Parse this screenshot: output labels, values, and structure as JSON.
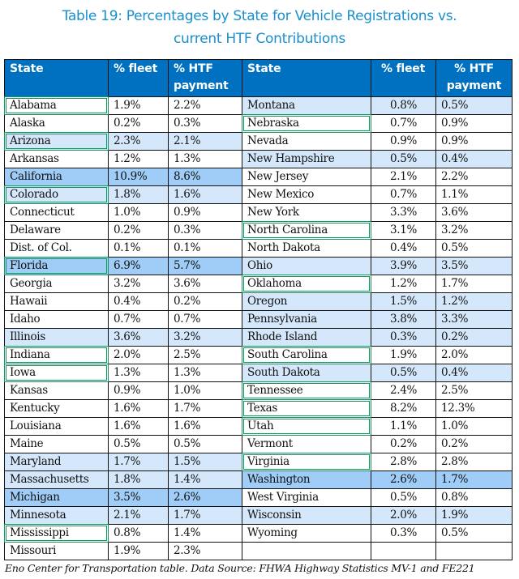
{
  "title_line1": "Table 19: Percentages by State for Vehicle Registrations vs.",
  "title_line2": "current HTF Contributions",
  "headers": {
    "left": {
      "state": "State",
      "fleet": "% fleet",
      "htf": "% HTF payment"
    },
    "right": {
      "state": "State",
      "fleet": "% fleet",
      "htf": "% HTF payment"
    }
  },
  "colors": {
    "header_bg": "#0070c0",
    "title": "#1a8fce",
    "highlight_green": "#15955e",
    "shade_light": "#d5e8fb",
    "shade_medium": "#9fcdf7"
  },
  "left_rows": [
    {
      "state": "Alabama",
      "fleet": "1.9%",
      "htf": "2.2%",
      "green": true,
      "shade": ""
    },
    {
      "state": "Alaska",
      "fleet": "0.2%",
      "htf": "0.3%",
      "green": false,
      "shade": ""
    },
    {
      "state": "Arizona",
      "fleet": "2.3%",
      "htf": "2.1%",
      "green": true,
      "shade": "light"
    },
    {
      "state": "Arkansas",
      "fleet": "1.2%",
      "htf": "1.3%",
      "green": false,
      "shade": ""
    },
    {
      "state": "California",
      "fleet": "10.9%",
      "htf": "8.6%",
      "green": false,
      "shade": "medium"
    },
    {
      "state": "Colorado",
      "fleet": "1.8%",
      "htf": "1.6%",
      "green": true,
      "shade": "light"
    },
    {
      "state": "Connecticut",
      "fleet": "1.0%",
      "htf": "0.9%",
      "green": false,
      "shade": ""
    },
    {
      "state": "Delaware",
      "fleet": "0.2%",
      "htf": "0.3%",
      "green": false,
      "shade": ""
    },
    {
      "state": "Dist. of Col.",
      "fleet": "0.1%",
      "htf": "0.1%",
      "green": false,
      "shade": ""
    },
    {
      "state": "Florida",
      "fleet": "6.9%",
      "htf": "5.7%",
      "green": true,
      "shade": "medium"
    },
    {
      "state": "Georgia",
      "fleet": "3.2%",
      "htf": "3.6%",
      "green": false,
      "shade": ""
    },
    {
      "state": "Hawaii",
      "fleet": "0.4%",
      "htf": "0.2%",
      "green": false,
      "shade": ""
    },
    {
      "state": "Idaho",
      "fleet": "0.7%",
      "htf": "0.7%",
      "green": false,
      "shade": ""
    },
    {
      "state": "Illinois",
      "fleet": "3.6%",
      "htf": "3.2%",
      "green": false,
      "shade": "light"
    },
    {
      "state": "Indiana",
      "fleet": "2.0%",
      "htf": "2.5%",
      "green": true,
      "shade": ""
    },
    {
      "state": "Iowa",
      "fleet": "1.3%",
      "htf": "1.3%",
      "green": true,
      "shade": ""
    },
    {
      "state": "Kansas",
      "fleet": "0.9%",
      "htf": "1.0%",
      "green": false,
      "shade": ""
    },
    {
      "state": "Kentucky",
      "fleet": "1.6%",
      "htf": "1.7%",
      "green": false,
      "shade": ""
    },
    {
      "state": "Louisiana",
      "fleet": "1.6%",
      "htf": "1.6%",
      "green": false,
      "shade": ""
    },
    {
      "state": "Maine",
      "fleet": "0.5%",
      "htf": "0.5%",
      "green": false,
      "shade": ""
    },
    {
      "state": "Maryland",
      "fleet": "1.7%",
      "htf": "1.5%",
      "green": false,
      "shade": "light"
    },
    {
      "state": "Massachusetts",
      "fleet": "1.8%",
      "htf": "1.4%",
      "green": false,
      "shade": "light"
    },
    {
      "state": "Michigan",
      "fleet": "3.5%",
      "htf": "2.6%",
      "green": false,
      "shade": "medium"
    },
    {
      "state": "Minnesota",
      "fleet": "2.1%",
      "htf": "1.7%",
      "green": false,
      "shade": "light"
    },
    {
      "state": "Mississippi",
      "fleet": "0.8%",
      "htf": "1.4%",
      "green": true,
      "shade": ""
    },
    {
      "state": "Missouri",
      "fleet": "1.9%",
      "htf": "2.3%",
      "green": false,
      "shade": ""
    }
  ],
  "right_rows": [
    {
      "state": "Montana",
      "fleet": "0.8%",
      "htf": "0.5%",
      "green": false,
      "shade": "light"
    },
    {
      "state": "Nebraska",
      "fleet": "0.7%",
      "htf": "0.9%",
      "green": true,
      "shade": ""
    },
    {
      "state": "Nevada",
      "fleet": "0.9%",
      "htf": "0.9%",
      "green": false,
      "shade": ""
    },
    {
      "state": "New Hampshire",
      "fleet": "0.5%",
      "htf": "0.4%",
      "green": false,
      "shade": "light"
    },
    {
      "state": "New Jersey",
      "fleet": "2.1%",
      "htf": "2.2%",
      "green": false,
      "shade": ""
    },
    {
      "state": "New Mexico",
      "fleet": "0.7%",
      "htf": "1.1%",
      "green": false,
      "shade": ""
    },
    {
      "state": "New York",
      "fleet": "3.3%",
      "htf": "3.6%",
      "green": false,
      "shade": ""
    },
    {
      "state": "North Carolina",
      "fleet": "3.1%",
      "htf": "3.2%",
      "green": true,
      "shade": ""
    },
    {
      "state": "North Dakota",
      "fleet": "0.4%",
      "htf": "0.5%",
      "green": false,
      "shade": ""
    },
    {
      "state": "Ohio",
      "fleet": "3.9%",
      "htf": "3.5%",
      "green": false,
      "shade": "light"
    },
    {
      "state": "Oklahoma",
      "fleet": "1.2%",
      "htf": "1.7%",
      "green": true,
      "shade": ""
    },
    {
      "state": "Oregon",
      "fleet": "1.5%",
      "htf": "1.2%",
      "green": false,
      "shade": "light"
    },
    {
      "state": "Pennsylvania",
      "fleet": "3.8%",
      "htf": "3.3%",
      "green": false,
      "shade": "light"
    },
    {
      "state": "Rhode Island",
      "fleet": "0.3%",
      "htf": "0.2%",
      "green": false,
      "shade": "light"
    },
    {
      "state": "South Carolina",
      "fleet": "1.9%",
      "htf": "2.0%",
      "green": true,
      "shade": ""
    },
    {
      "state": "South Dakota",
      "fleet": "0.5%",
      "htf": "0.4%",
      "green": false,
      "shade": "light"
    },
    {
      "state": "Tennessee",
      "fleet": "2.4%",
      "htf": "2.5%",
      "green": true,
      "shade": ""
    },
    {
      "state": "Texas",
      "fleet": "8.2%",
      "htf": "12.3%",
      "green": true,
      "shade": ""
    },
    {
      "state": "Utah",
      "fleet": "1.1%",
      "htf": "1.0%",
      "green": true,
      "shade": ""
    },
    {
      "state": "Vermont",
      "fleet": "0.2%",
      "htf": "0.2%",
      "green": false,
      "shade": ""
    },
    {
      "state": "Virginia",
      "fleet": "2.8%",
      "htf": "2.8%",
      "green": true,
      "shade": ""
    },
    {
      "state": "Washington",
      "fleet": "2.6%",
      "htf": "1.7%",
      "green": false,
      "shade": "medium"
    },
    {
      "state": "West Virginia",
      "fleet": "0.5%",
      "htf": "0.8%",
      "green": false,
      "shade": ""
    },
    {
      "state": "Wisconsin",
      "fleet": "2.0%",
      "htf": "1.9%",
      "green": false,
      "shade": "light"
    },
    {
      "state": "Wyoming",
      "fleet": "0.3%",
      "htf": "0.5%",
      "green": false,
      "shade": ""
    },
    {
      "state": "",
      "fleet": "",
      "htf": "",
      "green": false,
      "shade": ""
    }
  ],
  "caption": "Eno Center for Transportation table. Data Source: FHWA Highway Statistics MV-1 and FE221"
}
